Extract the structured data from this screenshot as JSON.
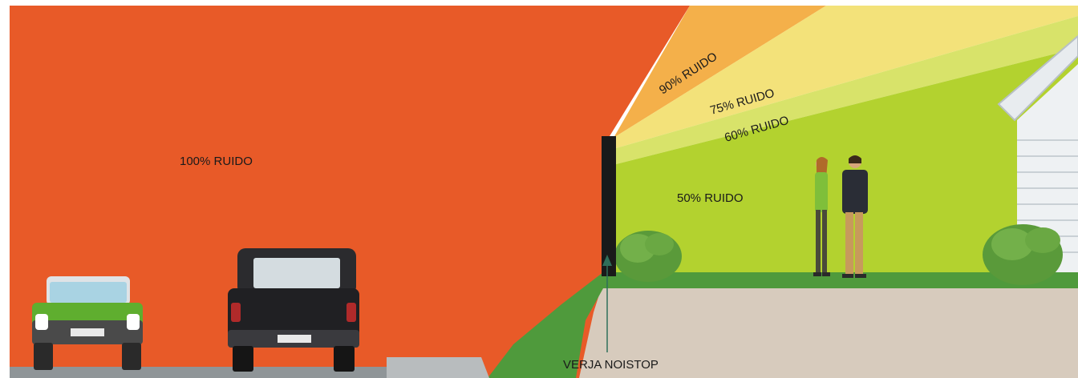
{
  "diagram": {
    "zones": [
      {
        "id": "zone-100",
        "label": "100% RUIDO"
      },
      {
        "id": "zone-90",
        "label": "90% RUIDO"
      },
      {
        "id": "zone-75",
        "label": "75% RUIDO"
      },
      {
        "id": "zone-60",
        "label": "60% RUIDO"
      },
      {
        "id": "zone-50",
        "label": "50% RUIDO"
      }
    ],
    "fence_label": "VERJA NOISTOP"
  },
  "colors": {
    "noise_100": "#e85a28",
    "noise_90": "#f4b04a",
    "noise_75": "#f3e27a",
    "noise_60": "#d8e36a",
    "noise_50": "#b3d22f",
    "grass": "#4f9a3c",
    "ground": "#d7cbbd",
    "road": "#8f9598",
    "fence": "#1a1a1a"
  }
}
